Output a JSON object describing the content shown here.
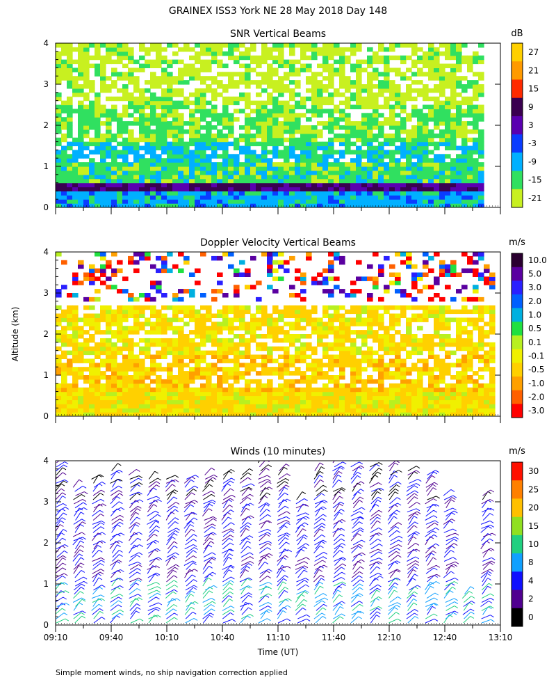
{
  "figure": {
    "title": "GRAINEX ISS3 York NE  28 May 2018 Day 148",
    "ylabel": "Altitude (km)",
    "xlabel": "Time (UT)",
    "footnote": "Simple moment winds, no ship navigation correction applied"
  },
  "chart_data": [
    {
      "type": "heatmap",
      "title": "SNR Vertical Beams",
      "x_axis": "Time (UT)",
      "xlim": [
        "09:10",
        "13:10"
      ],
      "xticks": [
        "09:10",
        "09:40",
        "10:10",
        "10:40",
        "11:10",
        "11:40",
        "12:10",
        "12:40",
        "13:10"
      ],
      "ylabel": "Altitude (km)",
      "ylim": [
        0,
        4
      ],
      "yticks": [
        "0",
        "1",
        "2",
        "3",
        "4"
      ],
      "colorbar": {
        "unit": "dB",
        "labels": [
          "27",
          "21",
          "15",
          "9",
          "3",
          "-3",
          "-9",
          "-15",
          "-21"
        ],
        "colors": [
          "#ffd000",
          "#ff9a00",
          "#ff2a00",
          "#3a0050",
          "#5a00b0",
          "#0a3cff",
          "#00b0ff",
          "#30e060",
          "#c8f020"
        ]
      },
      "data_end": "13:00",
      "layers": [
        {
          "from_km": 0.0,
          "to_km": 0.35,
          "level_db": -9
        },
        {
          "from_km": 0.35,
          "to_km": 0.6,
          "level_db": 6
        },
        {
          "from_km": 0.6,
          "to_km": 1.0,
          "level_db": -15
        },
        {
          "from_km": 1.0,
          "to_km": 1.6,
          "level_db": -12
        },
        {
          "from_km": 1.6,
          "to_km": 2.5,
          "level_db": -17
        },
        {
          "from_km": 2.5,
          "to_km": 4.0,
          "level_db": -21
        }
      ]
    },
    {
      "type": "heatmap",
      "title": "Doppler Velocity Vertical Beams",
      "x_axis": "Time (UT)",
      "xlim": [
        "09:10",
        "13:10"
      ],
      "xticks": [
        "09:10",
        "09:40",
        "10:10",
        "10:40",
        "11:10",
        "11:40",
        "12:10",
        "12:40",
        "13:10"
      ],
      "ylabel": "Altitude (km)",
      "ylim": [
        0,
        4
      ],
      "yticks": [
        "0",
        "1",
        "2",
        "3",
        "4"
      ],
      "colorbar": {
        "unit": "m/s",
        "labels": [
          "10.0",
          "5.0",
          "3.0",
          "2.0",
          "1.0",
          "0.5",
          "0.1",
          "-0.1",
          "-0.5",
          "-1.0",
          "-2.0",
          "-3.0"
        ],
        "colors": [
          "#2a0030",
          "#5a00a0",
          "#2a20ff",
          "#0060ff",
          "#00b0e0",
          "#20e040",
          "#b8f020",
          "#f0f000",
          "#ffd000",
          "#ffa000",
          "#ff6000",
          "#ff0000"
        ]
      },
      "layers": [
        {
          "from_km": 0.0,
          "to_km": 0.6,
          "velocity_ms": -0.3
        },
        {
          "from_km": 0.6,
          "to_km": 1.5,
          "velocity_ms": -0.5
        },
        {
          "from_km": 1.5,
          "to_km": 2.7,
          "velocity_ms": -0.3
        },
        {
          "from_km": 2.8,
          "to_km": 4.0,
          "velocity_ms": 0.0
        }
      ]
    },
    {
      "type": "scatter",
      "title": "Winds (10 minutes)",
      "x_axis": "Time (UT)",
      "xlim": [
        "09:10",
        "13:10"
      ],
      "xticks": [
        "09:10",
        "09:40",
        "10:10",
        "10:40",
        "11:10",
        "11:40",
        "12:10",
        "12:40",
        "13:10"
      ],
      "ylabel": "Altitude (km)",
      "ylim": [
        0,
        4
      ],
      "yticks": [
        "0",
        "1",
        "2",
        "3",
        "4"
      ],
      "colorbar": {
        "unit": "m/s",
        "labels": [
          "30",
          "25",
          "20",
          "15",
          "10",
          "8",
          "4",
          "2",
          "0"
        ],
        "colors": [
          "#ff1000",
          "#ff8000",
          "#ffc000",
          "#90e020",
          "#20d080",
          "#10a0ff",
          "#1010ff",
          "#500090",
          "#000000"
        ]
      },
      "profile_times": [
        "09:10",
        "09:20",
        "09:30",
        "09:40",
        "09:50",
        "10:00",
        "10:10",
        "10:20",
        "10:30",
        "10:40",
        "10:50",
        "11:00",
        "11:10",
        "11:20",
        "11:30",
        "11:40",
        "11:50",
        "12:00",
        "12:10",
        "12:20",
        "12:30",
        "12:40",
        "12:50",
        "13:00"
      ],
      "max_altitude_km": [
        4.0,
        3.4,
        3.6,
        3.8,
        3.7,
        3.6,
        3.6,
        3.6,
        3.7,
        3.7,
        3.7,
        4.0,
        3.8,
        3.1,
        3.8,
        4.0,
        3.9,
        3.9,
        3.9,
        3.8,
        3.7,
        3.2,
        0.8,
        3.2
      ],
      "speed_by_altitude": [
        {
          "from_km": 0.0,
          "to_km": 1.0,
          "speed_ms": 9
        },
        {
          "from_km": 1.0,
          "to_km": 3.0,
          "speed_ms": 5
        },
        {
          "from_km": 3.0,
          "to_km": 4.0,
          "speed_ms": 3
        }
      ]
    }
  ]
}
